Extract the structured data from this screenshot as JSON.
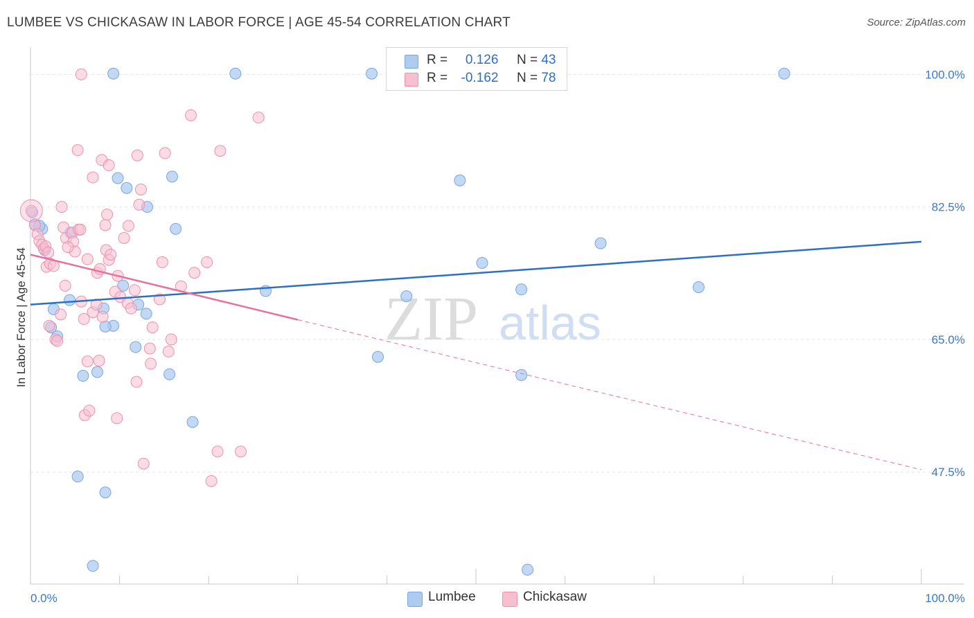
{
  "header": {
    "title": "LUMBEE VS CHICKASAW IN LABOR FORCE | AGE 45-54 CORRELATION CHART",
    "source": "Source: ZipAtlas.com"
  },
  "watermark": {
    "zip": "ZIP",
    "atlas": "atlas"
  },
  "legend": {
    "rows": [
      {
        "r_label": "R =",
        "r_value": "0.126",
        "n_label": "N =",
        "n_value": "43"
      },
      {
        "r_label": "R =",
        "r_value": "-0.162",
        "n_label": "N =",
        "n_value": "78"
      }
    ],
    "bottom": [
      "Lumbee",
      "Chickasaw"
    ]
  },
  "colors": {
    "lumbee_fill": "#aecbf0",
    "lumbee_stroke": "#7aa6df",
    "lumbee_line": "#2b6fc6",
    "chickasaw_fill": "#f7bfd0",
    "chickasaw_stroke": "#ef90ae",
    "chickasaw_line": "#e8709a",
    "grid": "#e6e6e6",
    "tick_text": "#3a78c9"
  },
  "chart_data": {
    "type": "scatter",
    "title": "LUMBEE VS CHICKASAW IN LABOR FORCE | AGE 45-54 CORRELATION CHART",
    "xlabel": "",
    "ylabel": "In Labor Force | Age 45-54",
    "xlim": [
      0,
      100
    ],
    "ylim": [
      32.7,
      103.6
    ],
    "x_tick_labels": [
      "0.0%",
      "100.0%"
    ],
    "y_ticks": [
      47.5,
      65.0,
      82.5,
      100.0
    ],
    "y_tick_labels": [
      "47.5%",
      "65.0%",
      "82.5%",
      "100.0%"
    ],
    "grid": true,
    "legend_position": "top-center",
    "series": [
      {
        "name": "Lumbee",
        "r": 0.126,
        "n": 43,
        "trend": {
          "x": [
            0,
            100
          ],
          "y": [
            69.6,
            77.9
          ]
        },
        "points": [
          [
            0.2,
            81.8
          ],
          [
            0.5,
            80.2
          ],
          [
            1.3,
            79.6
          ],
          [
            1.6,
            76.8
          ],
          [
            2.3,
            66.6
          ],
          [
            3.0,
            65.4
          ],
          [
            2.6,
            69.0
          ],
          [
            4.5,
            79.1
          ],
          [
            4.4,
            70.2
          ],
          [
            5.3,
            46.9
          ],
          [
            5.9,
            60.2
          ],
          [
            7.5,
            60.7
          ],
          [
            7.0,
            35.1
          ],
          [
            9.3,
            66.8
          ],
          [
            8.2,
            69.1
          ],
          [
            8.4,
            66.7
          ],
          [
            8.4,
            44.8
          ],
          [
            9.3,
            100.1
          ],
          [
            9.8,
            86.3
          ],
          [
            10.8,
            85.0
          ],
          [
            10.4,
            72.1
          ],
          [
            11.8,
            64.0
          ],
          [
            12.1,
            69.6
          ],
          [
            13.0,
            68.4
          ],
          [
            13.1,
            82.5
          ],
          [
            15.9,
            86.5
          ],
          [
            16.3,
            79.6
          ],
          [
            15.6,
            60.4
          ],
          [
            18.2,
            54.1
          ],
          [
            23.0,
            100.1
          ],
          [
            26.4,
            71.4
          ],
          [
            38.3,
            100.1
          ],
          [
            39.0,
            62.7
          ],
          [
            42.2,
            70.7
          ],
          [
            48.2,
            86.0
          ],
          [
            50.7,
            75.1
          ],
          [
            55.1,
            71.6
          ],
          [
            55.1,
            60.3
          ],
          [
            55.8,
            34.6
          ],
          [
            64.0,
            77.7
          ],
          [
            75.0,
            71.9
          ],
          [
            84.6,
            100.1
          ],
          [
            1.0,
            80.0
          ]
        ]
      },
      {
        "name": "Chickasaw",
        "r": -0.162,
        "n": 78,
        "trend_solid": {
          "x": [
            0,
            30
          ],
          "y": [
            76.2,
            67.6
          ]
        },
        "trend_dashed": {
          "x": [
            30,
            100
          ],
          "y": [
            67.6,
            47.8
          ]
        },
        "points": [
          [
            0.1,
            82.0
          ],
          [
            0.5,
            80.1
          ],
          [
            0.8,
            78.9
          ],
          [
            1.0,
            78.0
          ],
          [
            1.3,
            77.5
          ],
          [
            1.5,
            77.0
          ],
          [
            1.7,
            77.3
          ],
          [
            2.0,
            76.5
          ],
          [
            1.8,
            74.6
          ],
          [
            2.2,
            75.0
          ],
          [
            2.6,
            74.7
          ],
          [
            2.8,
            65.0
          ],
          [
            3.0,
            64.8
          ],
          [
            2.1,
            66.8
          ],
          [
            3.4,
            68.3
          ],
          [
            3.5,
            82.5
          ],
          [
            3.7,
            79.8
          ],
          [
            4.0,
            78.4
          ],
          [
            3.9,
            72.1
          ],
          [
            4.7,
            79.1
          ],
          [
            4.8,
            77.9
          ],
          [
            5.0,
            76.6
          ],
          [
            5.3,
            90.0
          ],
          [
            5.4,
            79.5
          ],
          [
            5.6,
            79.5
          ],
          [
            5.7,
            70.0
          ],
          [
            6.0,
            67.7
          ],
          [
            6.1,
            55.0
          ],
          [
            6.4,
            75.6
          ],
          [
            6.4,
            62.1
          ],
          [
            6.6,
            55.6
          ],
          [
            7.0,
            86.4
          ],
          [
            7.0,
            68.6
          ],
          [
            7.4,
            69.6
          ],
          [
            7.5,
            73.8
          ],
          [
            7.7,
            62.2
          ],
          [
            7.8,
            74.3
          ],
          [
            8.0,
            88.7
          ],
          [
            8.1,
            68.0
          ],
          [
            8.4,
            80.1
          ],
          [
            8.5,
            76.8
          ],
          [
            8.8,
            88.0
          ],
          [
            8.8,
            75.5
          ],
          [
            9.5,
            71.3
          ],
          [
            9.7,
            54.6
          ],
          [
            9.8,
            73.4
          ],
          [
            10.1,
            70.6
          ],
          [
            10.9,
            69.8
          ],
          [
            11.0,
            80.0
          ],
          [
            11.3,
            69.1
          ],
          [
            11.7,
            71.5
          ],
          [
            11.9,
            59.4
          ],
          [
            12.0,
            89.3
          ],
          [
            12.2,
            82.8
          ],
          [
            12.4,
            84.8
          ],
          [
            12.7,
            48.6
          ],
          [
            13.4,
            63.8
          ],
          [
            13.5,
            61.8
          ],
          [
            13.7,
            66.6
          ],
          [
            14.5,
            70.3
          ],
          [
            14.8,
            75.2
          ],
          [
            15.1,
            89.6
          ],
          [
            15.5,
            63.4
          ],
          [
            15.8,
            65.0
          ],
          [
            16.9,
            72.0
          ],
          [
            18.0,
            94.6
          ],
          [
            18.4,
            73.8
          ],
          [
            19.8,
            75.2
          ],
          [
            20.3,
            46.3
          ],
          [
            21.0,
            50.2
          ],
          [
            21.3,
            89.9
          ],
          [
            23.6,
            50.2
          ],
          [
            25.6,
            94.3
          ],
          [
            5.7,
            100.0
          ],
          [
            8.6,
            81.5
          ],
          [
            9.0,
            76.2
          ],
          [
            10.5,
            78.4
          ],
          [
            4.2,
            77.2
          ]
        ]
      }
    ]
  }
}
